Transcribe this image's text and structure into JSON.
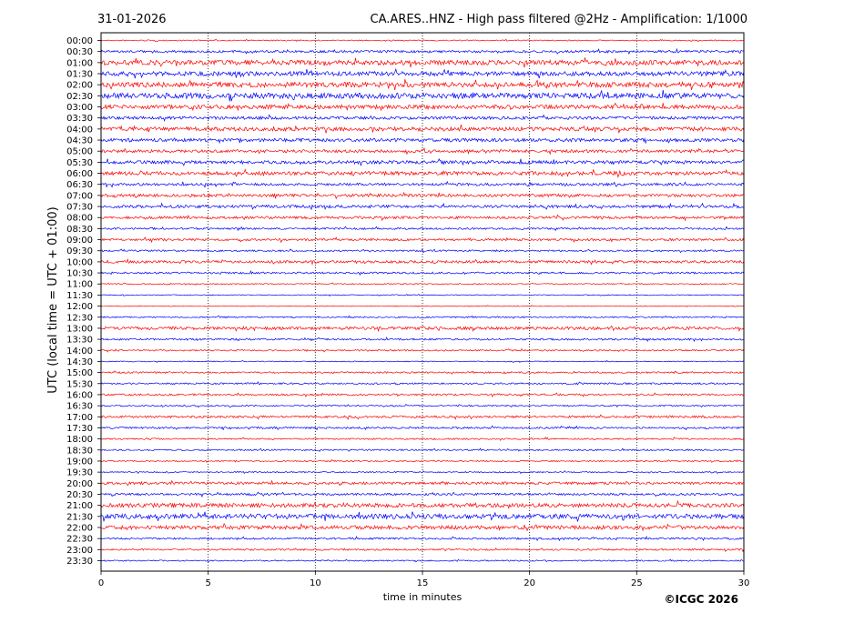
{
  "header": {
    "date": "31-01-2026",
    "title": "CA.ARES..HNZ - High pass filtered @2Hz - Amplification: 1/1000"
  },
  "footer": {
    "copyright": "©ICGC 2026"
  },
  "chart_data": {
    "type": "line",
    "title": "CA.ARES..HNZ - High pass filtered @2Hz - Amplification: 1/1000",
    "xlabel": "time in minutes",
    "ylabel": "UTC (local time = UTC + 01:00)",
    "xlim": [
      0,
      30
    ],
    "x_ticks": [
      0,
      5,
      10,
      15,
      20,
      25,
      30
    ],
    "vertical_gridlines": [
      5,
      10,
      15,
      20,
      25
    ],
    "grid": "vertical dotted",
    "series_colors": [
      "#ff0000",
      "#0000ff"
    ],
    "rows": [
      "00:00",
      "00:30",
      "01:00",
      "01:30",
      "02:00",
      "02:30",
      "03:00",
      "03:30",
      "04:00",
      "04:30",
      "05:00",
      "05:30",
      "06:00",
      "06:30",
      "07:00",
      "07:30",
      "08:00",
      "08:30",
      "09:00",
      "09:30",
      "10:00",
      "10:30",
      "11:00",
      "11:30",
      "12:00",
      "12:30",
      "13:00",
      "13:30",
      "14:00",
      "14:30",
      "15:00",
      "15:30",
      "16:00",
      "16:30",
      "17:00",
      "17:30",
      "18:00",
      "18:30",
      "19:00",
      "19:30",
      "20:00",
      "20:30",
      "21:00",
      "21:30",
      "22:00",
      "22:30",
      "23:00",
      "23:30"
    ],
    "row_activity": [
      0.6,
      1.3,
      2.6,
      2.4,
      2.8,
      3.0,
      2.2,
      1.6,
      2.2,
      1.8,
      1.6,
      1.8,
      2.0,
      1.4,
      1.6,
      1.6,
      1.4,
      1.0,
      1.2,
      0.9,
      1.4,
      1.0,
      0.6,
      0.5,
      0.4,
      0.8,
      1.6,
      1.0,
      0.8,
      0.5,
      0.9,
      0.9,
      1.0,
      0.8,
      1.2,
      1.0,
      0.8,
      0.8,
      0.7,
      0.7,
      1.4,
      1.2,
      2.2,
      2.6,
      2.0,
      1.0,
      0.9,
      0.7
    ]
  }
}
